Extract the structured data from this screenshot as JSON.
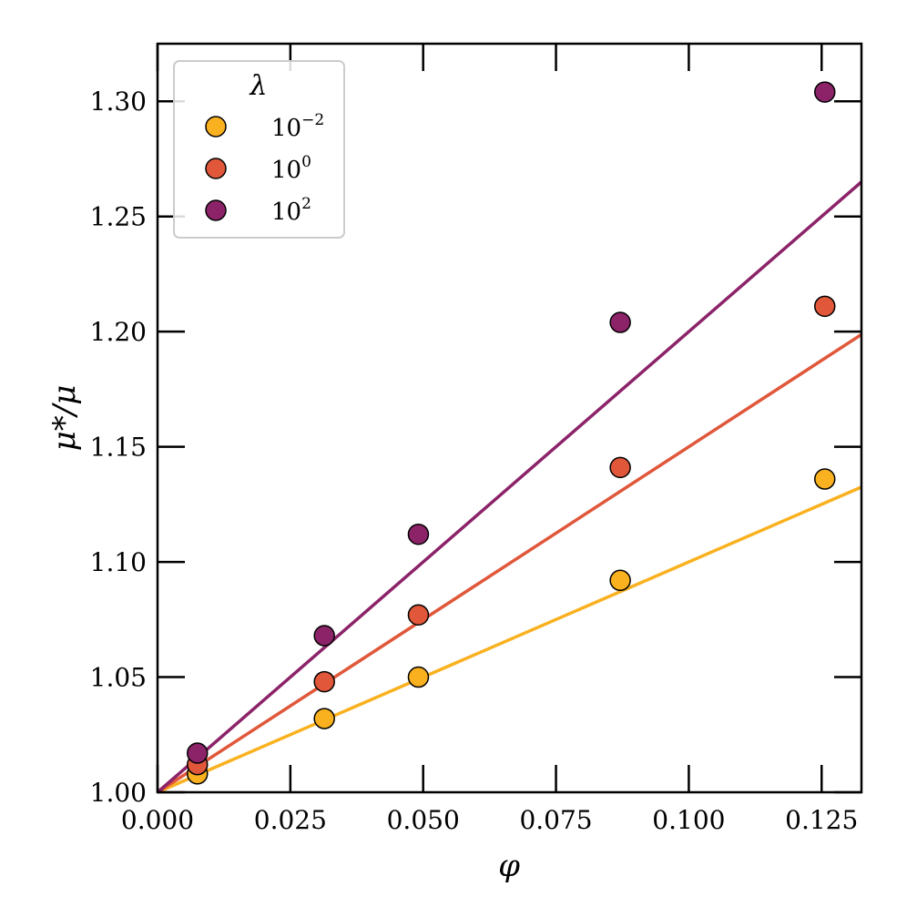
{
  "chart_data": {
    "type": "scatter",
    "xlabel": "φ",
    "ylabel": "μ*/μ",
    "xlim": [
      0,
      0.1325
    ],
    "ylim": [
      1.0,
      1.325
    ],
    "xticks": [
      0.0,
      0.025,
      0.05,
      0.075,
      0.1,
      0.125
    ],
    "xtick_labels": [
      "0.000",
      "0.025",
      "0.050",
      "0.075",
      "0.100",
      "0.125"
    ],
    "yticks": [
      1.0,
      1.05,
      1.1,
      1.15,
      1.2,
      1.25,
      1.3
    ],
    "ytick_labels": [
      "1.00",
      "1.05",
      "1.10",
      "1.15",
      "1.20",
      "1.25",
      "1.30"
    ],
    "grid": false,
    "legend": {
      "title": "λ",
      "position": "top-left"
    },
    "series": [
      {
        "name": "10^-2",
        "label_base": "10",
        "label_exp": "−2",
        "color": "#f9b11f",
        "x": [
          0.0075,
          0.0314,
          0.0491,
          0.0871,
          0.1256
        ],
        "y": [
          1.008,
          1.032,
          1.05,
          1.092,
          1.136
        ],
        "fit_slope": 1.0
      },
      {
        "name": "10^0",
        "label_base": "10",
        "label_exp": "0",
        "color": "#e0573a",
        "x": [
          0.0075,
          0.0314,
          0.0491,
          0.0871,
          0.1256
        ],
        "y": [
          1.012,
          1.048,
          1.077,
          1.141,
          1.211
        ],
        "fit_slope": 1.5
      },
      {
        "name": "10^2",
        "label_base": "10",
        "label_exp": "2",
        "color": "#8c2369",
        "x": [
          0.0075,
          0.0314,
          0.0491,
          0.0871,
          0.1256
        ],
        "y": [
          1.017,
          1.068,
          1.112,
          1.204,
          1.304
        ],
        "fit_slope": 2.0
      }
    ]
  }
}
